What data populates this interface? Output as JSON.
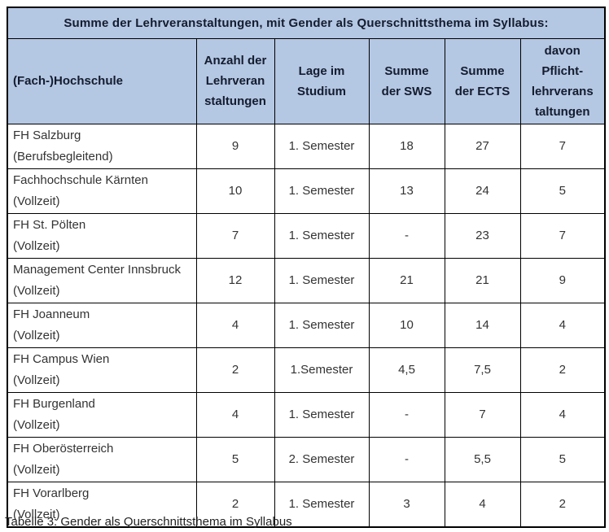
{
  "table": {
    "title": "Summe der Lehrveranstaltungen, mit Gender als Querschnittsthema im Syllabus:",
    "columns": [
      {
        "label": "(Fach-)Hochschule"
      },
      {
        "label": "Anzahl der\nLehrveran\nstaltungen"
      },
      {
        "label": "Lage im\nStudium"
      },
      {
        "label": "Summe\nder SWS"
      },
      {
        "label": "Summe\nder ECTS"
      },
      {
        "label": "davon\nPflicht-\nlehrverans\ntaltungen"
      }
    ],
    "rows": [
      {
        "school": "FH Salzburg\n(Berufsbegleitend)",
        "anzahl": "9",
        "lage": "1. Semester",
        "sws": "18",
        "ects": "27",
        "pflicht": "7"
      },
      {
        "school": "Fachhochschule Kärnten\n(Vollzeit)",
        "anzahl": "10",
        "lage": "1. Semester",
        "sws": "13",
        "ects": "24",
        "pflicht": "5"
      },
      {
        "school": "FH St. Pölten\n(Vollzeit)",
        "anzahl": "7",
        "lage": "1. Semester",
        "sws": "-",
        "ects": "23",
        "pflicht": "7"
      },
      {
        "school": "Management Center Innsbruck\n(Vollzeit)",
        "anzahl": "12",
        "lage": "1. Semester",
        "sws": "21",
        "ects": "21",
        "pflicht": "9"
      },
      {
        "school": "FH Joanneum\n(Vollzeit)",
        "anzahl": "4",
        "lage": "1. Semester",
        "sws": "10",
        "ects": "14",
        "pflicht": "4"
      },
      {
        "school": "FH Campus Wien\n(Vollzeit)",
        "anzahl": "2",
        "lage": "1.Semester",
        "sws": "4,5",
        "ects": "7,5",
        "pflicht": "2"
      },
      {
        "school": "FH Burgenland\n(Vollzeit)",
        "anzahl": "4",
        "lage": "1. Semester",
        "sws": "-",
        "ects": "7",
        "pflicht": "4"
      },
      {
        "school": "FH Oberösterreich\n(Vollzeit)",
        "anzahl": "5",
        "lage": "2. Semester",
        "sws": "-",
        "ects": "5,5",
        "pflicht": "5"
      },
      {
        "school": "FH Vorarlberg\n(Vollzeit)",
        "anzahl": "2",
        "lage": "1. Semester",
        "sws": "3",
        "ects": "4",
        "pflicht": "2"
      }
    ],
    "caption": "Tabelle 3: Gender als Querschnittsthema im Syllabus",
    "colors": {
      "header_background": "#b4c7e3",
      "border": "#000000",
      "header_text": "#141c2e",
      "body_text": "#333333"
    }
  }
}
